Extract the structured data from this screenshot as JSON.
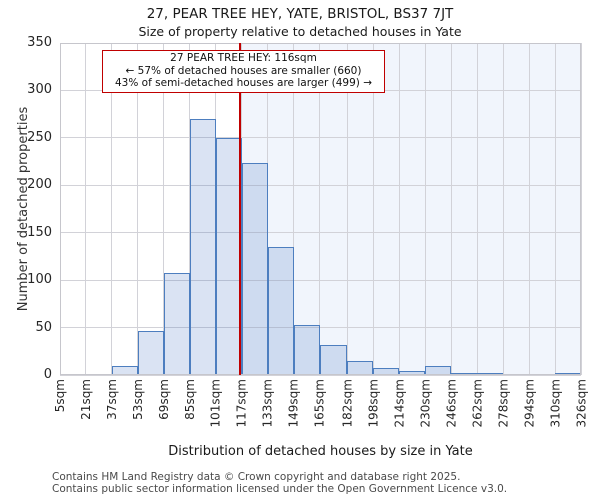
{
  "header": {
    "title": "27, PEAR TREE HEY, YATE, BRISTOL, BS37 7JT",
    "subtitle": "Size of property relative to detached houses in Yate"
  },
  "chart_data": {
    "type": "bar",
    "title": "27, PEAR TREE HEY, YATE, BRISTOL, BS37 7JT",
    "subtitle": "Size of property relative to detached houses in Yate",
    "xlabel": "Distribution of detached houses by size in Yate",
    "ylabel": "Number of detached properties",
    "categories": [
      "5sqm",
      "21sqm",
      "37sqm",
      "53sqm",
      "69sqm",
      "85sqm",
      "101sqm",
      "117sqm",
      "133sqm",
      "149sqm",
      "165sqm",
      "182sqm",
      "198sqm",
      "214sqm",
      "230sqm",
      "246sqm",
      "262sqm",
      "278sqm",
      "294sqm",
      "310sqm",
      "326sqm"
    ],
    "bin_edges_sqm": [
      5,
      21,
      37,
      53,
      69,
      85,
      101,
      117,
      133,
      149,
      165,
      182,
      198,
      214,
      230,
      246,
      262,
      278,
      294,
      310,
      326
    ],
    "values": [
      0,
      0,
      10,
      46,
      108,
      270,
      250,
      224,
      135,
      53,
      32,
      15,
      7,
      4,
      10,
      2,
      2,
      0,
      0,
      2
    ],
    "ylim": [
      0,
      350
    ],
    "yticks": [
      0,
      50,
      100,
      150,
      200,
      250,
      300,
      350
    ],
    "grid": true,
    "legend": null,
    "marker": {
      "sqm": 116
    },
    "annotation": {
      "line1": "27 PEAR TREE HEY: 116sqm",
      "line2": "← 57% of detached houses are smaller (660)",
      "line3": "43% of semi-detached houses are larger (499) →"
    },
    "colors": {
      "bar_fill": "rgba(68,114,196,0.2)",
      "bar_edge": "#4d7ebf",
      "marker_line": "#c00000",
      "annotation_border": "#c00000",
      "shade_right_of_marker": "#f1f5fc",
      "grid": "#d2d2d8"
    }
  },
  "footer": {
    "line1": "Contains HM Land Registry data © Crown copyright and database right 2025.",
    "line2": "Contains public sector information licensed under the Open Government Licence v3.0."
  }
}
